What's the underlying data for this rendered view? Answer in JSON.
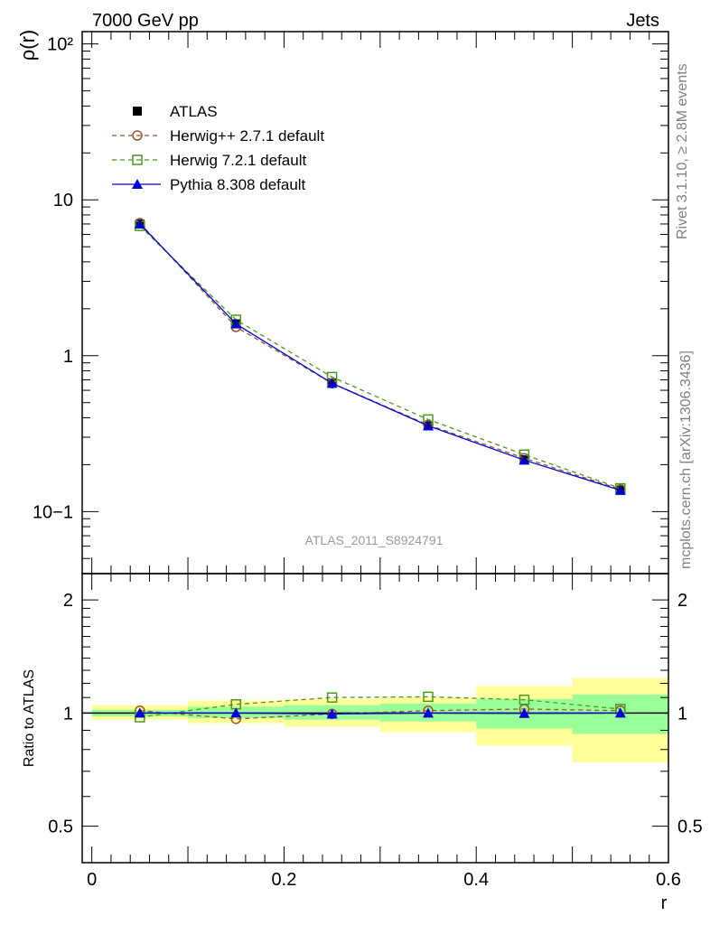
{
  "header": {
    "left": "7000 GeV pp",
    "right": "Jets"
  },
  "side_labels": {
    "rivet": "Rivet 3.1.10, ≥ 2.8M events",
    "mcplots": "mcplots.cern.ch [arXiv:1306.3436]"
  },
  "watermark": "ATLAS_2011_S8924791",
  "colors": {
    "atlas": "#000000",
    "herwigpp": "#a0522d",
    "herwig7": "#4a9a1a",
    "pythia": "#0000dd",
    "band_yellow": "#ffff99",
    "band_green": "#99ff99"
  },
  "chart_data": [
    {
      "type": "line",
      "panel": "main",
      "ylabel": "ρ(r)",
      "xlabel": "",
      "xlim": [
        -0.01,
        0.6
      ],
      "ylim": [
        0.04,
        120
      ],
      "yscale": "log",
      "ytick_labels": [
        "10−1",
        "1",
        "10",
        "10²"
      ],
      "legend_position": "top-left",
      "x": [
        0.05,
        0.15,
        0.25,
        0.35,
        0.45,
        0.55
      ],
      "series": [
        {
          "name": "ATLAS",
          "style": "marker-square",
          "values": [
            7.0,
            1.6,
            0.67,
            0.355,
            0.215,
            0.137
          ]
        },
        {
          "name": "Herwig++ 2.7.1 default",
          "style": "dashed-open-circle",
          "values": [
            7.1,
            1.53,
            0.665,
            0.36,
            0.22,
            0.139
          ]
        },
        {
          "name": "Herwig 7.2.1 default",
          "style": "dashed-open-square",
          "values": [
            6.8,
            1.7,
            0.73,
            0.39,
            0.232,
            0.141
          ]
        },
        {
          "name": "Pythia 8.308 default",
          "style": "solid-filled-triangle",
          "values": [
            7.0,
            1.6,
            0.665,
            0.355,
            0.214,
            0.137
          ]
        }
      ]
    },
    {
      "type": "line",
      "panel": "ratio",
      "ylabel": "Ratio to ATLAS",
      "xlabel": "r",
      "xlim": [
        -0.01,
        0.6
      ],
      "ylim": [
        0.4,
        2.35
      ],
      "yscale": "log",
      "ytick_labels": [
        "0.5",
        "1",
        "2"
      ],
      "xtick_labels": [
        "0",
        "0.2",
        "0.4",
        "0.6"
      ],
      "bands": {
        "edges": [
          0.0,
          0.1,
          0.2,
          0.3,
          0.4,
          0.5,
          0.6
        ],
        "yellow_lo": [
          0.96,
          0.94,
          0.92,
          0.89,
          0.82,
          0.74
        ],
        "yellow_hi": [
          1.05,
          1.08,
          1.09,
          1.1,
          1.18,
          1.24
        ],
        "green_lo": [
          0.98,
          0.97,
          0.96,
          0.95,
          0.91,
          0.88
        ],
        "green_hi": [
          1.02,
          1.04,
          1.05,
          1.06,
          1.09,
          1.12
        ]
      },
      "x": [
        0.05,
        0.15,
        0.25,
        0.35,
        0.45,
        0.55
      ],
      "series": [
        {
          "name": "Herwig++ 2.7.1 default",
          "values": [
            1.015,
            0.965,
            0.995,
            1.015,
            1.025,
            1.015
          ]
        },
        {
          "name": "Herwig 7.2.1 default",
          "values": [
            0.975,
            1.055,
            1.1,
            1.105,
            1.085,
            1.025
          ]
        },
        {
          "name": "Pythia 8.308 default",
          "values": [
            1.0,
            1.0,
            0.995,
            1.0,
            0.998,
            1.0
          ]
        }
      ]
    }
  ]
}
